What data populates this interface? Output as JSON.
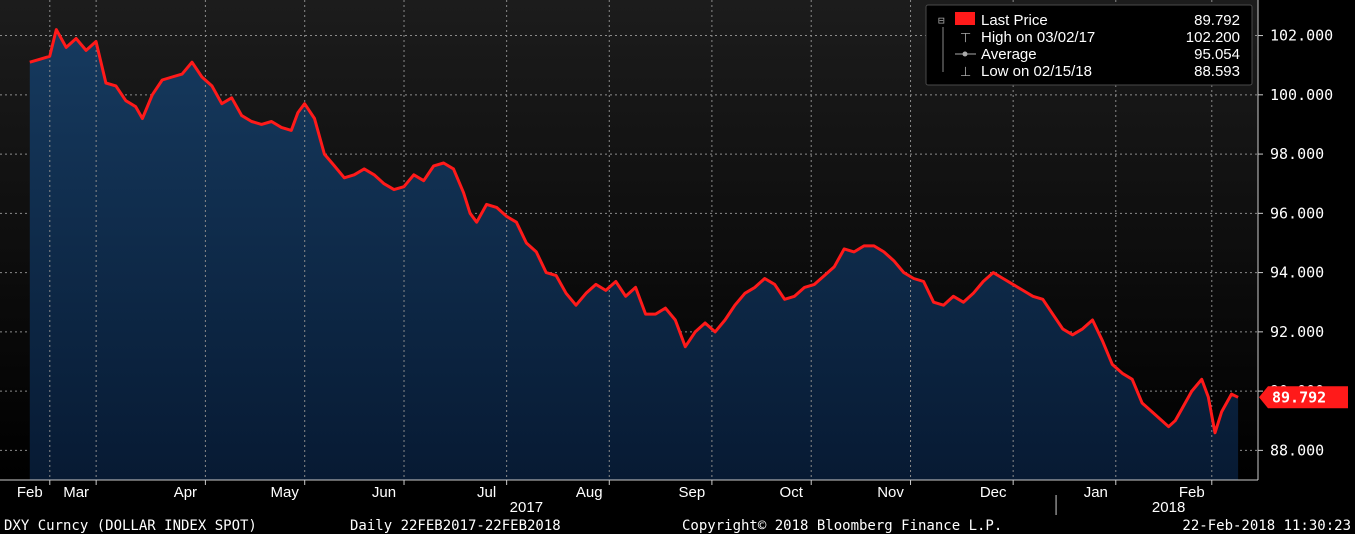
{
  "chart_data": {
    "type": "area",
    "ylim": [
      87,
      103.2
    ],
    "y_ticks": [
      88,
      90,
      92,
      94,
      96,
      98,
      100,
      102
    ],
    "y_tick_labels": [
      "88.000",
      "90.000",
      "92.000",
      "94.000",
      "96.000",
      "98.000",
      "100.000",
      "102.000"
    ],
    "x_ticks": [
      {
        "date": "2017-02-22",
        "label": "Feb"
      },
      {
        "date": "2017-03-08",
        "label": "Mar"
      },
      {
        "date": "2017-04-10",
        "label": "Apr"
      },
      {
        "date": "2017-05-10",
        "label": "May"
      },
      {
        "date": "2017-06-09",
        "label": "Jun"
      },
      {
        "date": "2017-07-10",
        "label": "Jul"
      },
      {
        "date": "2017-08-10",
        "label": "Aug"
      },
      {
        "date": "2017-09-10",
        "label": "Sep"
      },
      {
        "date": "2017-10-10",
        "label": "Oct"
      },
      {
        "date": "2017-11-09",
        "label": "Nov"
      },
      {
        "date": "2017-12-10",
        "label": "Dec"
      },
      {
        "date": "2018-01-10",
        "label": "Jan"
      },
      {
        "date": "2018-02-08",
        "label": "Feb"
      }
    ],
    "year_labels": [
      {
        "date": "2017-07-22",
        "label": "2017"
      },
      {
        "date": "2018-02-01",
        "label": "2018"
      }
    ],
    "year_divider_date": "2017-12-29",
    "grid": true,
    "legend_position": "top-right",
    "series": [
      {
        "name": "DXY Curncy (DOLLAR INDEX SPOT)",
        "color": "#ff1a1a",
        "fill_color": "#0e2a4c",
        "points": [
          [
            "2017-02-22",
            101.1
          ],
          [
            "2017-02-25",
            101.2
          ],
          [
            "2017-02-28",
            101.3
          ],
          [
            "2017-03-02",
            102.2
          ],
          [
            "2017-03-05",
            101.6
          ],
          [
            "2017-03-08",
            101.9
          ],
          [
            "2017-03-11",
            101.5
          ],
          [
            "2017-03-14",
            101.8
          ],
          [
            "2017-03-17",
            100.4
          ],
          [
            "2017-03-20",
            100.3
          ],
          [
            "2017-03-23",
            99.8
          ],
          [
            "2017-03-26",
            99.6
          ],
          [
            "2017-03-28",
            99.2
          ],
          [
            "2017-03-31",
            100.0
          ],
          [
            "2017-04-03",
            100.5
          ],
          [
            "2017-04-06",
            100.6
          ],
          [
            "2017-04-09",
            100.7
          ],
          [
            "2017-04-12",
            101.1
          ],
          [
            "2017-04-15",
            100.6
          ],
          [
            "2017-04-18",
            100.3
          ],
          [
            "2017-04-21",
            99.7
          ],
          [
            "2017-04-24",
            99.9
          ],
          [
            "2017-04-27",
            99.3
          ],
          [
            "2017-04-30",
            99.1
          ],
          [
            "2017-05-03",
            99.0
          ],
          [
            "2017-05-06",
            99.1
          ],
          [
            "2017-05-09",
            98.9
          ],
          [
            "2017-05-12",
            98.8
          ],
          [
            "2017-05-14",
            99.4
          ],
          [
            "2017-05-16",
            99.7
          ],
          [
            "2017-05-19",
            99.2
          ],
          [
            "2017-05-22",
            98.0
          ],
          [
            "2017-05-25",
            97.6
          ],
          [
            "2017-05-28",
            97.2
          ],
          [
            "2017-05-31",
            97.3
          ],
          [
            "2017-06-03",
            97.5
          ],
          [
            "2017-06-06",
            97.3
          ],
          [
            "2017-06-09",
            97.0
          ],
          [
            "2017-06-12",
            96.8
          ],
          [
            "2017-06-15",
            96.9
          ],
          [
            "2017-06-18",
            97.3
          ],
          [
            "2017-06-21",
            97.1
          ],
          [
            "2017-06-24",
            97.6
          ],
          [
            "2017-06-27",
            97.7
          ],
          [
            "2017-06-30",
            97.5
          ],
          [
            "2017-07-03",
            96.7
          ],
          [
            "2017-07-05",
            96.0
          ],
          [
            "2017-07-07",
            95.7
          ],
          [
            "2017-07-10",
            96.3
          ],
          [
            "2017-07-13",
            96.2
          ],
          [
            "2017-07-16",
            95.9
          ],
          [
            "2017-07-19",
            95.7
          ],
          [
            "2017-07-22",
            95.0
          ],
          [
            "2017-07-25",
            94.7
          ],
          [
            "2017-07-28",
            94.0
          ],
          [
            "2017-07-31",
            93.9
          ],
          [
            "2017-08-03",
            93.3
          ],
          [
            "2017-08-06",
            92.9
          ],
          [
            "2017-08-09",
            93.3
          ],
          [
            "2017-08-12",
            93.6
          ],
          [
            "2017-08-15",
            93.4
          ],
          [
            "2017-08-18",
            93.7
          ],
          [
            "2017-08-21",
            93.2
          ],
          [
            "2017-08-24",
            93.5
          ],
          [
            "2017-08-27",
            92.6
          ],
          [
            "2017-08-30",
            92.6
          ],
          [
            "2017-09-02",
            92.8
          ],
          [
            "2017-09-05",
            92.4
          ],
          [
            "2017-09-08",
            91.5
          ],
          [
            "2017-09-11",
            92.0
          ],
          [
            "2017-09-14",
            92.3
          ],
          [
            "2017-09-17",
            92.0
          ],
          [
            "2017-09-20",
            92.4
          ],
          [
            "2017-09-23",
            92.9
          ],
          [
            "2017-09-26",
            93.3
          ],
          [
            "2017-09-29",
            93.5
          ],
          [
            "2017-10-02",
            93.8
          ],
          [
            "2017-10-05",
            93.6
          ],
          [
            "2017-10-08",
            93.1
          ],
          [
            "2017-10-11",
            93.2
          ],
          [
            "2017-10-14",
            93.5
          ],
          [
            "2017-10-17",
            93.6
          ],
          [
            "2017-10-20",
            93.9
          ],
          [
            "2017-10-23",
            94.2
          ],
          [
            "2017-10-26",
            94.8
          ],
          [
            "2017-10-29",
            94.7
          ],
          [
            "2017-11-01",
            94.9
          ],
          [
            "2017-11-04",
            94.9
          ],
          [
            "2017-11-07",
            94.7
          ],
          [
            "2017-11-10",
            94.4
          ],
          [
            "2017-11-13",
            94.0
          ],
          [
            "2017-11-16",
            93.8
          ],
          [
            "2017-11-19",
            93.7
          ],
          [
            "2017-11-22",
            93.0
          ],
          [
            "2017-11-25",
            92.9
          ],
          [
            "2017-11-28",
            93.2
          ],
          [
            "2017-12-01",
            93.0
          ],
          [
            "2017-12-04",
            93.3
          ],
          [
            "2017-12-07",
            93.7
          ],
          [
            "2017-12-10",
            94.0
          ],
          [
            "2017-12-13",
            93.8
          ],
          [
            "2017-12-16",
            93.6
          ],
          [
            "2017-12-19",
            93.4
          ],
          [
            "2017-12-22",
            93.2
          ],
          [
            "2017-12-25",
            93.1
          ],
          [
            "2017-12-28",
            92.6
          ],
          [
            "2017-12-31",
            92.1
          ],
          [
            "2018-01-03",
            91.9
          ],
          [
            "2018-01-06",
            92.1
          ],
          [
            "2018-01-09",
            92.4
          ],
          [
            "2018-01-12",
            91.7
          ],
          [
            "2018-01-15",
            90.9
          ],
          [
            "2018-01-18",
            90.6
          ],
          [
            "2018-01-21",
            90.4
          ],
          [
            "2018-01-24",
            89.6
          ],
          [
            "2018-01-27",
            89.3
          ],
          [
            "2018-01-30",
            89.0
          ],
          [
            "2018-02-01",
            88.8
          ],
          [
            "2018-02-03",
            89.0
          ],
          [
            "2018-02-05",
            89.4
          ],
          [
            "2018-02-08",
            90.0
          ],
          [
            "2018-02-11",
            90.4
          ],
          [
            "2018-02-13",
            89.8
          ],
          [
            "2018-02-15",
            88.593
          ],
          [
            "2018-02-17",
            89.3
          ],
          [
            "2018-02-20",
            89.9
          ],
          [
            "2018-02-22",
            89.792
          ]
        ]
      }
    ],
    "average_value": 95.054,
    "high": {
      "date": "2017-03-02",
      "value": 102.2
    },
    "low": {
      "date": "2018-02-15",
      "value": 88.593
    }
  },
  "legend": {
    "last_price_label": "Last Price",
    "last_price_value": "89.792",
    "high_label": "High on 03/02/17",
    "high_value": "102.200",
    "average_label": "Average",
    "average_value": "95.054",
    "low_label": "Low on 02/15/18",
    "low_value": "88.593"
  },
  "last_tag": "89.792",
  "footer": {
    "ticker": "DXY Curncy (DOLLAR INDEX SPOT)",
    "range": "Daily 22FEB2017-22FEB2018",
    "copyright": "Copyright© 2018 Bloomberg Finance L.P.",
    "timestamp": "22-Feb-2018 11:30:23"
  },
  "colors": {
    "background": "#000000",
    "plot_top": "#1a1a1a",
    "line": "#ff1a1a",
    "area": "#0e2a4c",
    "grid": "#8a8a8a"
  }
}
